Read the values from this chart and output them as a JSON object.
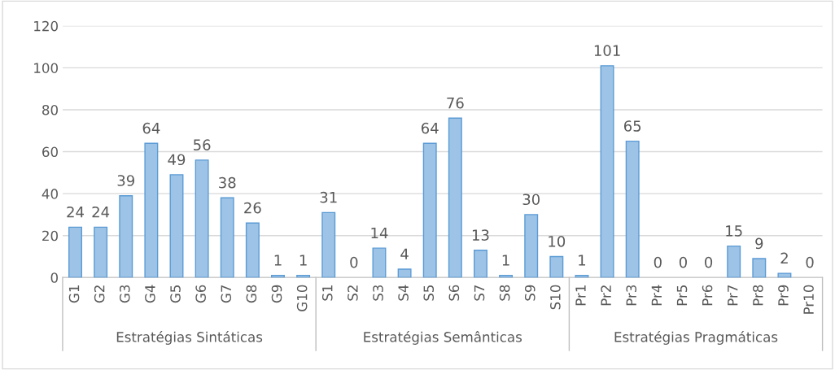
{
  "chart_data": {
    "type": "bar",
    "categories": [
      "G1",
      "G2",
      "G3",
      "G4",
      "G5",
      "G6",
      "G7",
      "G8",
      "G9",
      "G10",
      "S1",
      "S2",
      "S3",
      "S4",
      "S5",
      "S6",
      "S7",
      "S8",
      "S9",
      "S10",
      "Pr1",
      "Pr2",
      "Pr3",
      "Pr4",
      "Pr5",
      "Pr6",
      "Pr7",
      "Pr8",
      "Pr9",
      "Pr10"
    ],
    "values": [
      24,
      24,
      39,
      64,
      49,
      56,
      38,
      26,
      1,
      1,
      31,
      0,
      14,
      4,
      64,
      76,
      13,
      1,
      30,
      10,
      1,
      101,
      65,
      0,
      0,
      0,
      15,
      9,
      2,
      0
    ],
    "color": "#9dc3e6",
    "ylim": [
      0,
      120
    ],
    "yticks": [
      0,
      20,
      40,
      60,
      80,
      100,
      120
    ],
    "grid": "y",
    "data_labels": true,
    "annotations": [
      "Estratégias Sintáticas",
      "Estratégias Semânticas",
      "Estratégias Pragmáticas"
    ]
  }
}
